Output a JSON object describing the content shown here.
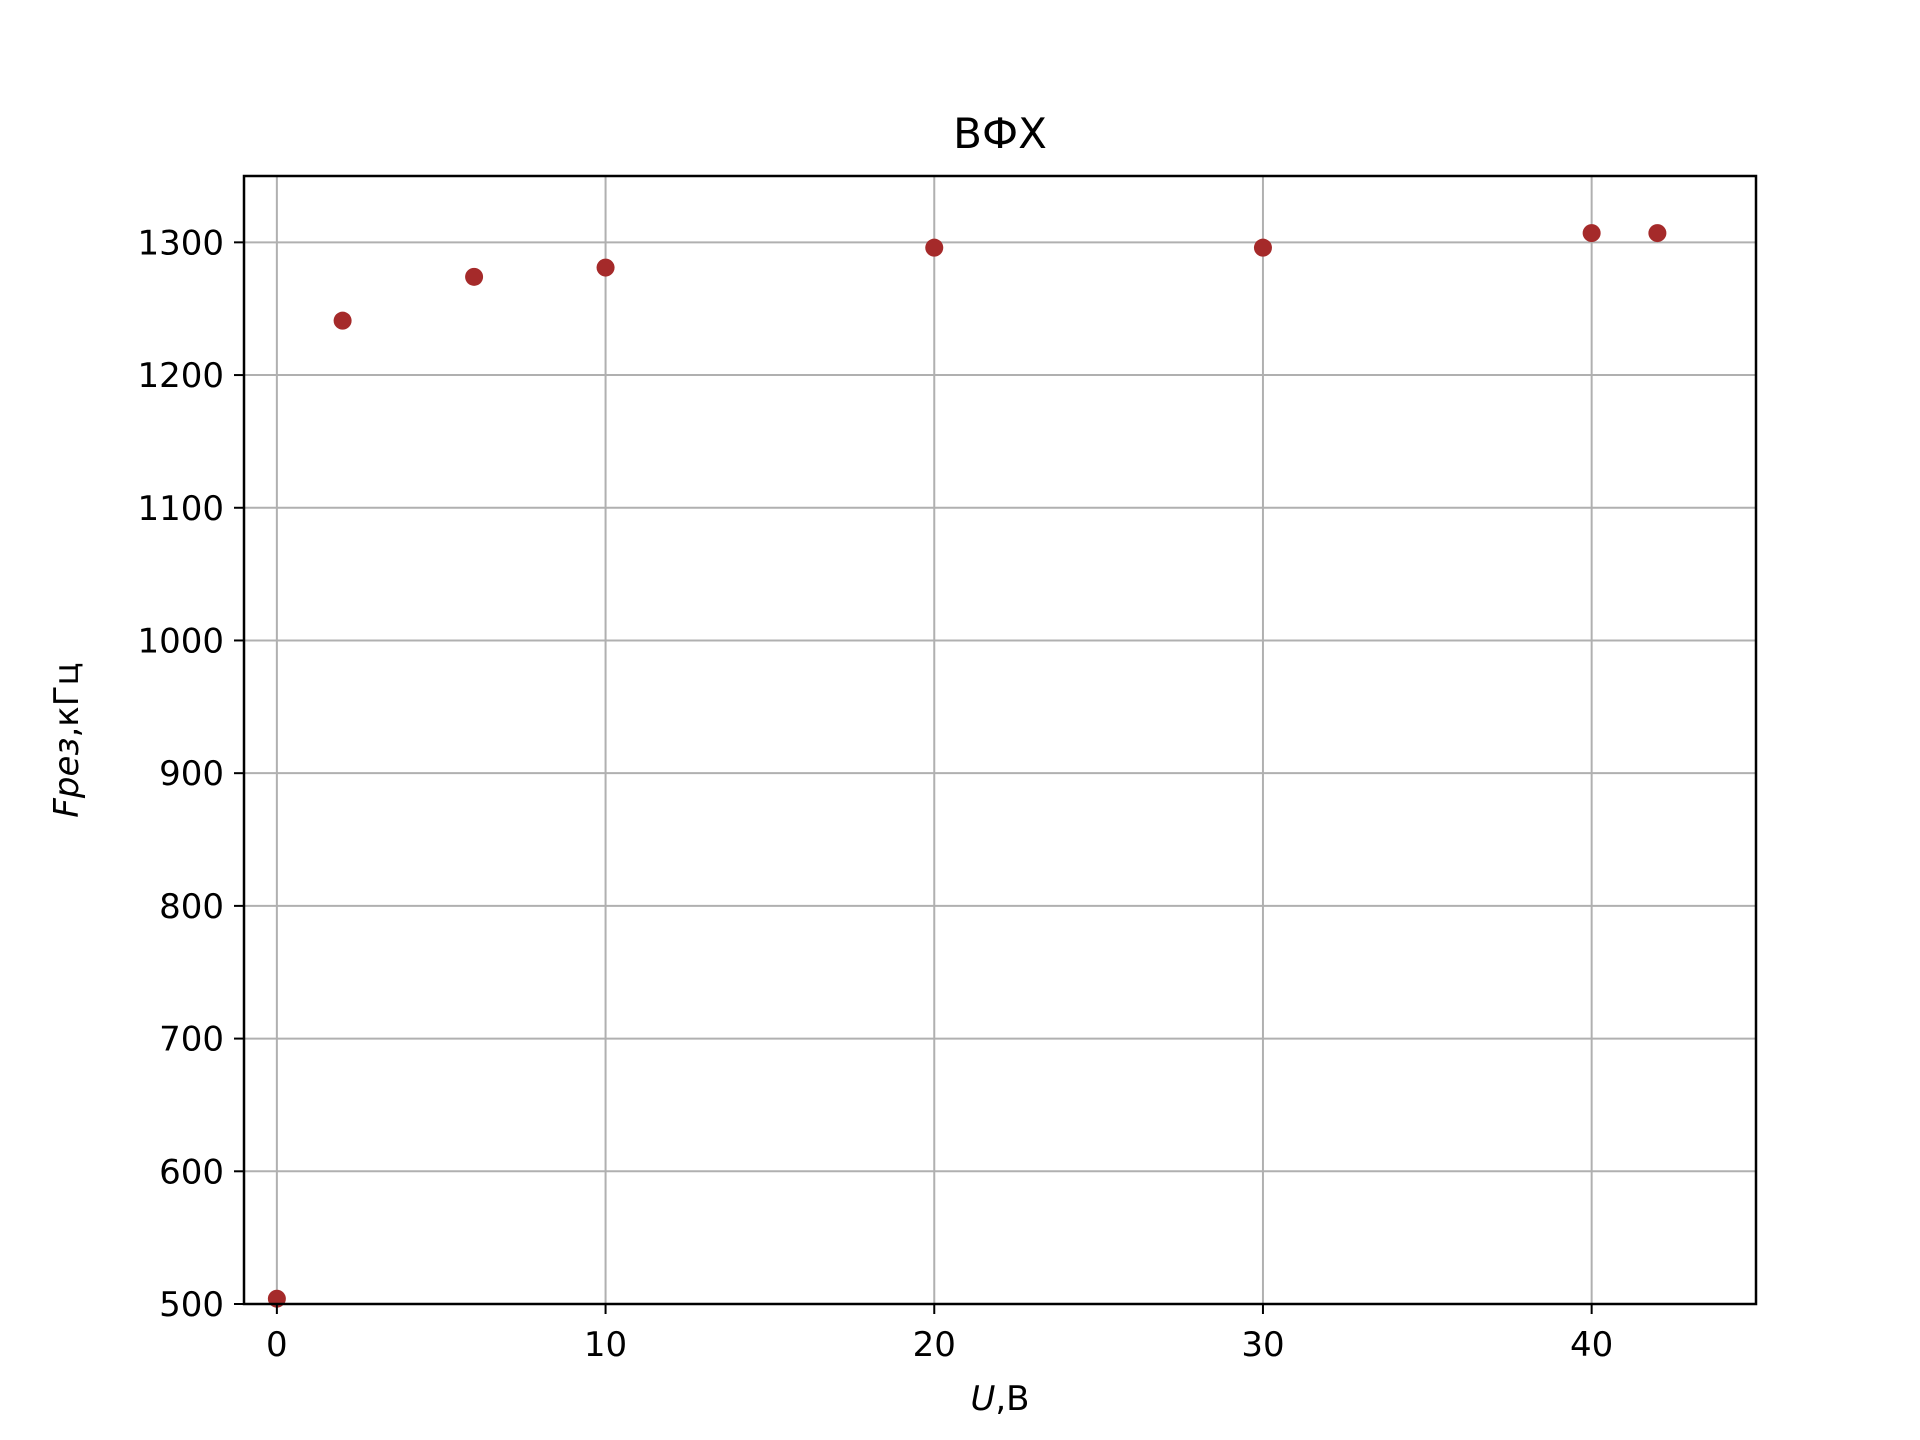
{
  "chart_data": {
    "type": "scatter",
    "title": "ВФХ",
    "xlabel": {
      "var": "U",
      "unit": ",В"
    },
    "ylabel": {
      "var": "Fрез",
      "unit": ",кГц"
    },
    "xlim": [
      -1,
      45
    ],
    "ylim": [
      500,
      1350
    ],
    "xticks": [
      0,
      10,
      20,
      30,
      40
    ],
    "yticks": [
      500,
      600,
      700,
      800,
      900,
      1000,
      1100,
      1200,
      1300
    ],
    "grid": true,
    "series": [
      {
        "color": "#a52a2a",
        "points": [
          {
            "x": 0,
            "y": 504
          },
          {
            "x": 2,
            "y": 1241
          },
          {
            "x": 6,
            "y": 1274
          },
          {
            "x": 10,
            "y": 1281
          },
          {
            "x": 20,
            "y": 1296
          },
          {
            "x": 30,
            "y": 1296
          },
          {
            "x": 40,
            "y": 1307
          },
          {
            "x": 42,
            "y": 1307
          }
        ]
      }
    ]
  }
}
